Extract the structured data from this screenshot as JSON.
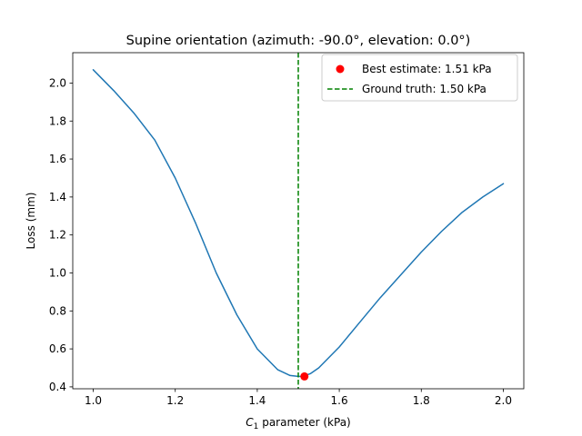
{
  "chart_data": {
    "type": "line",
    "title": "Supine orientation (azimuth: -90.0°, elevation: 0.0°)",
    "xlabel_main": "C",
    "xlabel_sub": "1",
    "xlabel_rest": " parameter (kPa)",
    "ylabel": "Loss (mm)",
    "xlim": [
      0.95,
      2.05
    ],
    "ylim": [
      0.39,
      2.16
    ],
    "xticks": [
      "1.0",
      "1.2",
      "1.4",
      "1.6",
      "1.8",
      "2.0"
    ],
    "yticks": [
      "0.4",
      "0.6",
      "0.8",
      "1.0",
      "1.2",
      "1.4",
      "1.6",
      "1.8",
      "2.0"
    ],
    "grid": false,
    "legend_position": "top-right",
    "series": [
      {
        "kind": "line",
        "color": "#1f77b4",
        "x": [
          1.0,
          1.05,
          1.1,
          1.15,
          1.2,
          1.25,
          1.3,
          1.35,
          1.4,
          1.45,
          1.48,
          1.5,
          1.51,
          1.53,
          1.55,
          1.6,
          1.65,
          1.7,
          1.75,
          1.8,
          1.85,
          1.9,
          1.95,
          2.0
        ],
        "y": [
          2.07,
          1.96,
          1.84,
          1.7,
          1.5,
          1.26,
          1.0,
          0.78,
          0.6,
          0.49,
          0.46,
          0.455,
          0.455,
          0.47,
          0.5,
          0.61,
          0.74,
          0.87,
          0.99,
          1.11,
          1.22,
          1.32,
          1.4,
          1.47
        ]
      }
    ],
    "markers": [
      {
        "name": "Best estimate: 1.51 kPa",
        "x": 1.515,
        "y": 0.455,
        "color": "#ff0000"
      }
    ],
    "vlines": [
      {
        "name": "Ground truth: 1.50 kPa",
        "x": 1.5,
        "color": "#008000"
      }
    ]
  }
}
